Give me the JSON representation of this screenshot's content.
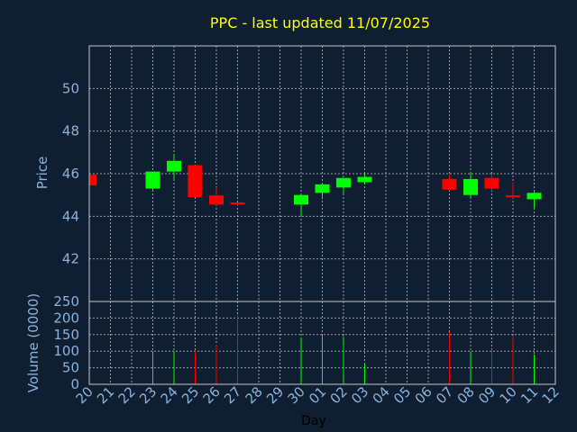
{
  "chart_data": {
    "type": "candlestick",
    "title": "PPC - last updated 11/07/2025",
    "xlabel": "Day",
    "price_panel": {
      "ylabel": "Price",
      "ylim": [
        40.0,
        52.0
      ],
      "yticks": [
        "42",
        "44",
        "46",
        "48",
        "50"
      ],
      "ytick_values": [
        42,
        44,
        46,
        48,
        50
      ],
      "grid": true
    },
    "volume_panel": {
      "ylabel": "Volume (0000)",
      "ylim": [
        0,
        250
      ],
      "yticks": [
        "0",
        "50",
        "100",
        "150",
        "200",
        "250"
      ],
      "ytick_values": [
        0,
        50,
        100,
        150,
        200,
        250
      ],
      "grid": true
    },
    "x_tick_labels": [
      "20",
      "21",
      "22",
      "23",
      "24",
      "25",
      "26",
      "27",
      "28",
      "29",
      "30",
      "01",
      "02",
      "03",
      "04",
      "05",
      "06",
      "07",
      "08",
      "09",
      "10",
      "11",
      "12"
    ],
    "candles": [
      {
        "day": "20",
        "open": 45.95,
        "high": 45.95,
        "low": 45.4,
        "close": 45.45,
        "volume": 0
      },
      {
        "day": "23",
        "open": 45.3,
        "high": 46.1,
        "low": 45.25,
        "close": 46.1,
        "volume": 100
      },
      {
        "day": "24",
        "open": 46.1,
        "high": 46.9,
        "low": 45.7,
        "close": 46.6,
        "volume": 100
      },
      {
        "day": "25",
        "open": 46.4,
        "high": 46.4,
        "low": 44.9,
        "close": 44.9,
        "volume": 98
      },
      {
        "day": "26",
        "open": 44.98,
        "high": 45.35,
        "low": 44.5,
        "close": 44.55,
        "volume": 120
      },
      {
        "day": "27",
        "open": 44.65,
        "high": 44.65,
        "low": 44.5,
        "close": 44.58,
        "volume": 210
      },
      {
        "day": "30",
        "open": 44.55,
        "high": 45.0,
        "low": 44.0,
        "close": 45.0,
        "volume": 142
      },
      {
        "day": "01",
        "open": 45.1,
        "high": 45.5,
        "low": 44.8,
        "close": 45.5,
        "volume": 148
      },
      {
        "day": "02",
        "open": 45.35,
        "high": 45.8,
        "low": 45.0,
        "close": 45.8,
        "volume": 145
      },
      {
        "day": "03",
        "open": 45.6,
        "high": 46.0,
        "low": 45.5,
        "close": 45.85,
        "volume": 60
      },
      {
        "day": "07",
        "open": 45.75,
        "high": 45.95,
        "low": 45.2,
        "close": 45.25,
        "volume": 158
      },
      {
        "day": "08",
        "open": 45.0,
        "high": 46.1,
        "low": 44.9,
        "close": 45.75,
        "volume": 100
      },
      {
        "day": "09",
        "open": 45.8,
        "high": 46.0,
        "low": 45.2,
        "close": 45.3,
        "volume": 105
      },
      {
        "day": "10",
        "open": 44.98,
        "high": 45.6,
        "low": 44.85,
        "close": 44.92,
        "volume": 145
      },
      {
        "day": "11",
        "open": 44.8,
        "high": 45.15,
        "low": 44.4,
        "close": 45.1,
        "volume": 90
      }
    ],
    "colors": {
      "background": "#0f1e30",
      "plot_background": "#0f1e30",
      "up": "#00ff00",
      "down": "#ff0000",
      "grid": "#c8c8c8",
      "frame": "#c8c8c8",
      "title": "#ffff00",
      "axis_text": "#8ab4dc",
      "xlabel": "#000000"
    }
  }
}
